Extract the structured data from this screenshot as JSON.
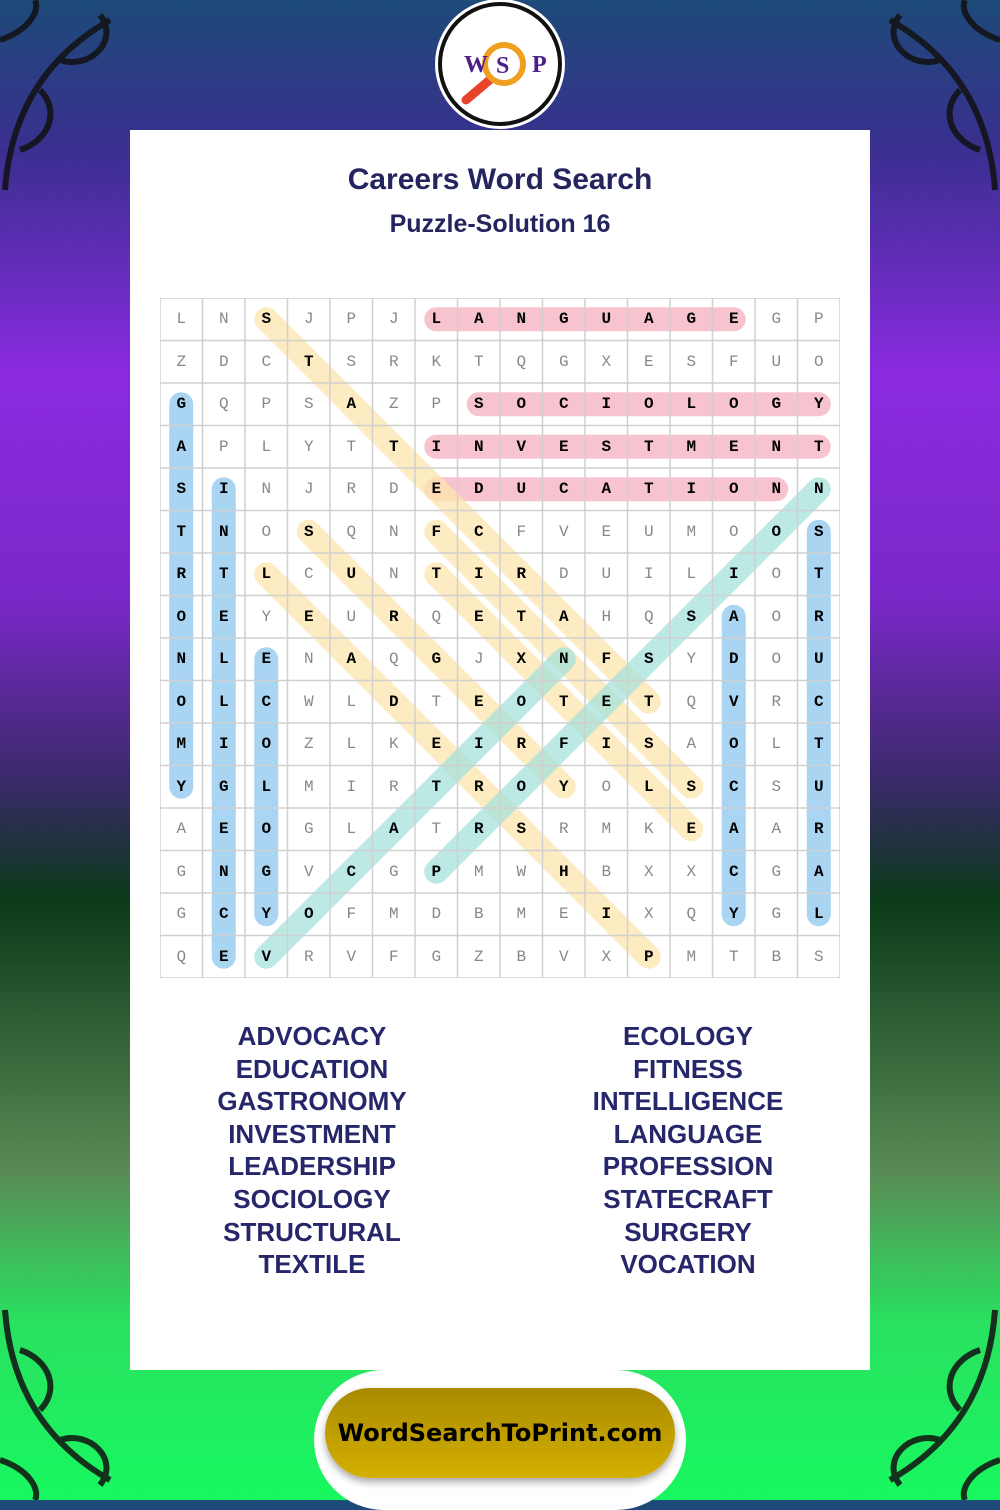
{
  "logo": {
    "letters": [
      "W",
      "S",
      "P"
    ]
  },
  "title": "Careers Word Search",
  "subtitle": "Puzzle-Solution 16",
  "grid": [
    "LNSJPJLANGUAGEGP",
    "ZDCTSRKTQGXESFUO",
    "GQPSAZPSOCIOLOGY",
    "APLYTTINVESTMENT",
    "SINJRDEDUCATIONN",
    "TNOSQNFCFVEUMOOS",
    "RTLCUNTIRDUILIOT",
    "OEYEURQETAHQSAOR",
    "NLENAQGJXNFSYDOU",
    "OLCWLDTEOTETQVRC",
    "MIOZLKEIRFISAOLT",
    "YGLMIRTROYOLSCSU",
    "AEOGLATRSRMKEAAR",
    "GNGVCGPMWHBXXCGA",
    "GCYOFMDBMEIXQYGL",
    "QEVRVFGZBVXPMTBS"
  ],
  "colors": {
    "pink": "#f7c3cf",
    "blue": "#a9d5f2",
    "yellow": "#fde6ae",
    "teal": "#a6e2dc",
    "text": "#24245e",
    "button": "#c4a200"
  },
  "solutions": [
    {
      "word": "LANGUAGE",
      "start": [
        0,
        6
      ],
      "dir": [
        0,
        1
      ],
      "color": "pink"
    },
    {
      "word": "SOCIOLOGY",
      "start": [
        2,
        7
      ],
      "dir": [
        0,
        1
      ],
      "color": "pink"
    },
    {
      "word": "INVESTMENT",
      "start": [
        3,
        6
      ],
      "dir": [
        0,
        1
      ],
      "color": "pink"
    },
    {
      "word": "EDUCATION",
      "start": [
        4,
        6
      ],
      "dir": [
        0,
        1
      ],
      "color": "pink"
    },
    {
      "word": "GASTRONOMY",
      "start": [
        2,
        0
      ],
      "dir": [
        1,
        0
      ],
      "color": "blue"
    },
    {
      "word": "INTELLIGENCE",
      "start": [
        4,
        1
      ],
      "dir": [
        1,
        0
      ],
      "color": "blue"
    },
    {
      "word": "ECOLOGY",
      "start": [
        8,
        2
      ],
      "dir": [
        1,
        0
      ],
      "color": "blue"
    },
    {
      "word": "ADVOCACY",
      "start": [
        7,
        13
      ],
      "dir": [
        1,
        0
      ],
      "color": "blue"
    },
    {
      "word": "STRUCTURAL",
      "start": [
        5,
        15
      ],
      "dir": [
        1,
        0
      ],
      "color": "blue"
    },
    {
      "word": "STATECRAFT",
      "start": [
        0,
        2
      ],
      "dir": [
        1,
        1
      ],
      "color": "yellow"
    },
    {
      "word": "SURGERY",
      "start": [
        5,
        3
      ],
      "dir": [
        1,
        1
      ],
      "color": "yellow"
    },
    {
      "word": "LEADERSHIP",
      "start": [
        6,
        2
      ],
      "dir": [
        1,
        1
      ],
      "color": "yellow"
    },
    {
      "word": "FITNESS",
      "start": [
        5,
        6
      ],
      "dir": [
        1,
        1
      ],
      "color": "yellow"
    },
    {
      "word": "TEXTILE",
      "start": [
        6,
        6
      ],
      "dir": [
        1,
        1
      ],
      "color": "yellow"
    },
    {
      "word": "VOCATION",
      "start": [
        15,
        2
      ],
      "dir": [
        -1,
        1
      ],
      "color": "teal"
    },
    {
      "word": "PROFESSION",
      "start": [
        13,
        6
      ],
      "dir": [
        -1,
        1
      ],
      "color": "teal"
    }
  ],
  "word_list": {
    "left": [
      "ADVOCACY",
      "EDUCATION",
      "GASTRONOMY",
      "INVESTMENT",
      "LEADERSHIP",
      "SOCIOLOGY",
      "STRUCTURAL",
      "TEXTILE"
    ],
    "right": [
      "ECOLOGY",
      "FITNESS",
      "INTELLIGENCE",
      "LANGUAGE",
      "PROFESSION",
      "STATECRAFT",
      "SURGERY",
      "VOCATION"
    ]
  },
  "footer": {
    "site": "WordSearchToPrint.com"
  }
}
